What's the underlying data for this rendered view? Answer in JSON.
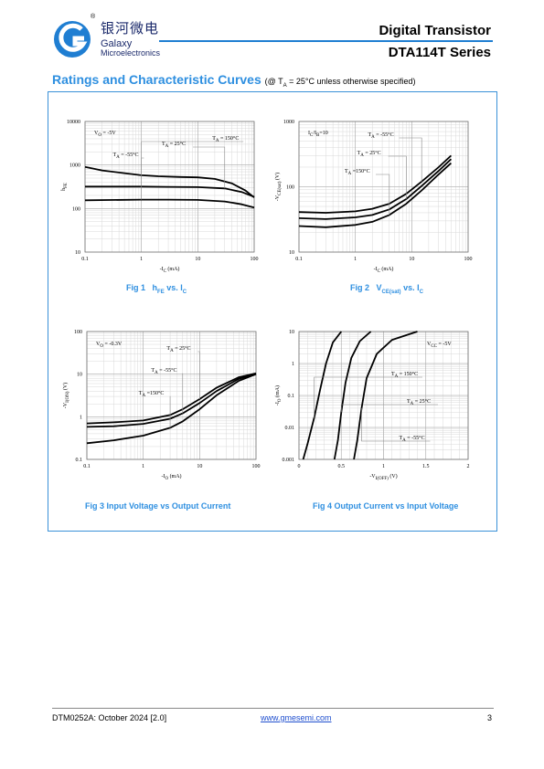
{
  "header": {
    "brand_chinese": "银河微电",
    "brand_line1": "Galaxy",
    "brand_line2": "Microelectronics",
    "registered_mark": "®",
    "product_type": "Digital Transistor",
    "series": "DTA114T Series"
  },
  "section": {
    "title": "Ratings and Characteristic Curves",
    "note_prefix": "(@ T",
    "note_sub": "A",
    "note_suffix": " = 25°C unless otherwise specified)"
  },
  "captions": {
    "fig1": {
      "num": "Fig 1",
      "text": "h",
      "sub": "FE",
      "rest": " vs. I",
      "sub2": "C"
    },
    "fig2": {
      "num": "Fig 2",
      "text": "V",
      "sub": "CE(sat)",
      "rest": " vs. I",
      "sub2": "C"
    },
    "fig3": "Fig 3    Input Voltage vs Output Current",
    "fig4": "Fig 4    Output Current vs Input Voltage"
  },
  "footer": {
    "doc_id": "DTM0252A: October 2024 [2.0]",
    "website": "www.gmesemi.com",
    "page": "3"
  },
  "colors": {
    "accent": "#2e8fe0",
    "frame": "#3a91d8",
    "logo": "#1f7ed2"
  },
  "chart_data": [
    {
      "type": "line",
      "id": "fig1",
      "xlabel": "-I_C (mA)",
      "ylabel": "h_FE",
      "xscale": "log",
      "yscale": "log",
      "xlim": [
        0.1,
        100
      ],
      "ylim": [
        10,
        10000
      ],
      "xticks": [
        "0.1",
        "1",
        "10",
        "100"
      ],
      "yticks": [
        "10",
        "100",
        "1000",
        "10000"
      ],
      "condition": "V_O = -5V",
      "series": [
        {
          "name": "T_A = 150°C",
          "points": [
            [
              0.1,
              900
            ],
            [
              0.2,
              750
            ],
            [
              0.5,
              650
            ],
            [
              1,
              580
            ],
            [
              2,
              550
            ],
            [
              5,
              530
            ],
            [
              10,
              520
            ],
            [
              20,
              480
            ],
            [
              40,
              380
            ],
            [
              70,
              260
            ],
            [
              100,
              180
            ]
          ]
        },
        {
          "name": "T_A = 25°C",
          "points": [
            [
              0.1,
              320
            ],
            [
              0.3,
              320
            ],
            [
              1,
              320
            ],
            [
              3,
              315
            ],
            [
              10,
              310
            ],
            [
              30,
              290
            ],
            [
              60,
              240
            ],
            [
              100,
              185
            ]
          ]
        },
        {
          "name": "T_A = -55°C",
          "points": [
            [
              0.1,
              155
            ],
            [
              1,
              160
            ],
            [
              3,
              160
            ],
            [
              10,
              158
            ],
            [
              30,
              145
            ],
            [
              60,
              125
            ],
            [
              100,
              105
            ]
          ]
        }
      ]
    },
    {
      "type": "line",
      "id": "fig2",
      "xlabel": "-I_C (mA)",
      "ylabel": "-V_CE(sat) (V)",
      "xscale": "log",
      "yscale": "log",
      "xlim": [
        0.1,
        100
      ],
      "ylim": [
        10,
        1000
      ],
      "xticks": [
        "0.1",
        "1",
        "10",
        "100"
      ],
      "yticks": [
        "10",
        "100",
        "1000"
      ],
      "condition": "I_C/I_B=10",
      "series": [
        {
          "name": "T_A = -55°C",
          "points": [
            [
              0.1,
              41
            ],
            [
              0.3,
              40
            ],
            [
              1,
              42
            ],
            [
              2,
              46
            ],
            [
              4,
              55
            ],
            [
              8,
              78
            ],
            [
              15,
              120
            ],
            [
              30,
              200
            ],
            [
              50,
              300
            ]
          ]
        },
        {
          "name": "T_A = 25°C",
          "points": [
            [
              0.1,
              33
            ],
            [
              0.3,
              32
            ],
            [
              1,
              34
            ],
            [
              2,
              37
            ],
            [
              4,
              45
            ],
            [
              8,
              65
            ],
            [
              15,
              103
            ],
            [
              30,
              175
            ],
            [
              50,
              265
            ]
          ]
        },
        {
          "name": "T_A =150°C",
          "points": [
            [
              0.1,
              25
            ],
            [
              0.3,
              24
            ],
            [
              1,
              26
            ],
            [
              2,
              29
            ],
            [
              4,
              37
            ],
            [
              8,
              55
            ],
            [
              15,
              88
            ],
            [
              30,
              155
            ],
            [
              50,
              230
            ]
          ]
        }
      ]
    },
    {
      "type": "line",
      "id": "fig3",
      "xlabel": "-I_O (mA)",
      "ylabel": "-V_I(ON) (V)",
      "xscale": "log",
      "yscale": "log",
      "xlim": [
        0.1,
        100
      ],
      "ylim": [
        0.1,
        100
      ],
      "xticks": [
        "0.1",
        "1",
        "10",
        "100"
      ],
      "yticks": [
        "0.1",
        "1",
        "10",
        "100"
      ],
      "condition": "V_O = -0.3V",
      "series": [
        {
          "name": "T_A = 25°C",
          "points": [
            [
              0.1,
              0.7
            ],
            [
              0.3,
              0.74
            ],
            [
              1,
              0.82
            ],
            [
              3,
              1.1
            ],
            [
              5,
              1.5
            ],
            [
              10,
              2.6
            ],
            [
              20,
              4.8
            ],
            [
              50,
              8.5
            ],
            [
              100,
              10.5
            ]
          ]
        },
        {
          "name": "T_A = -55°C",
          "points": [
            [
              0.1,
              0.58
            ],
            [
              0.3,
              0.6
            ],
            [
              1,
              0.68
            ],
            [
              3,
              0.9
            ],
            [
              5,
              1.2
            ],
            [
              10,
              2.1
            ],
            [
              20,
              4.0
            ],
            [
              50,
              7.8
            ],
            [
              100,
              10.2
            ]
          ]
        },
        {
          "name": "T_A =150°C",
          "points": [
            [
              0.1,
              0.24
            ],
            [
              0.3,
              0.28
            ],
            [
              1,
              0.36
            ],
            [
              3,
              0.55
            ],
            [
              5,
              0.78
            ],
            [
              10,
              1.5
            ],
            [
              20,
              3.2
            ],
            [
              50,
              7.0
            ],
            [
              100,
              10.0
            ]
          ]
        }
      ]
    },
    {
      "type": "line",
      "id": "fig4",
      "xlabel": "-V_I(OFF) (V)",
      "ylabel": "-I_O (mA)",
      "xscale": "linear",
      "yscale": "log",
      "xlim": [
        0,
        2
      ],
      "ylim": [
        0.001,
        10
      ],
      "xticks": [
        "0",
        "0.5",
        "1",
        "1.5",
        "2"
      ],
      "yticks": [
        "0.001",
        "0.01",
        "0.1",
        "1",
        "10"
      ],
      "condition": "V_CC = -5V",
      "series": [
        {
          "name": "T_A = 150°C",
          "points": [
            [
              0.05,
              0.001
            ],
            [
              0.1,
              0.003
            ],
            [
              0.18,
              0.02
            ],
            [
              0.25,
              0.15
            ],
            [
              0.32,
              1.0
            ],
            [
              0.4,
              4.5
            ],
            [
              0.5,
              10
            ]
          ]
        },
        {
          "name": "T_A = 25°C",
          "points": [
            [
              0.42,
              0.001
            ],
            [
              0.46,
              0.004
            ],
            [
              0.5,
              0.03
            ],
            [
              0.55,
              0.25
            ],
            [
              0.62,
              1.5
            ],
            [
              0.72,
              5.0
            ],
            [
              0.85,
              10
            ]
          ]
        },
        {
          "name": "T_A = -55°C",
          "points": [
            [
              0.65,
              0.001
            ],
            [
              0.69,
              0.004
            ],
            [
              0.74,
              0.04
            ],
            [
              0.8,
              0.35
            ],
            [
              0.92,
              2.0
            ],
            [
              1.1,
              5.5
            ],
            [
              1.4,
              10
            ]
          ]
        }
      ]
    }
  ]
}
